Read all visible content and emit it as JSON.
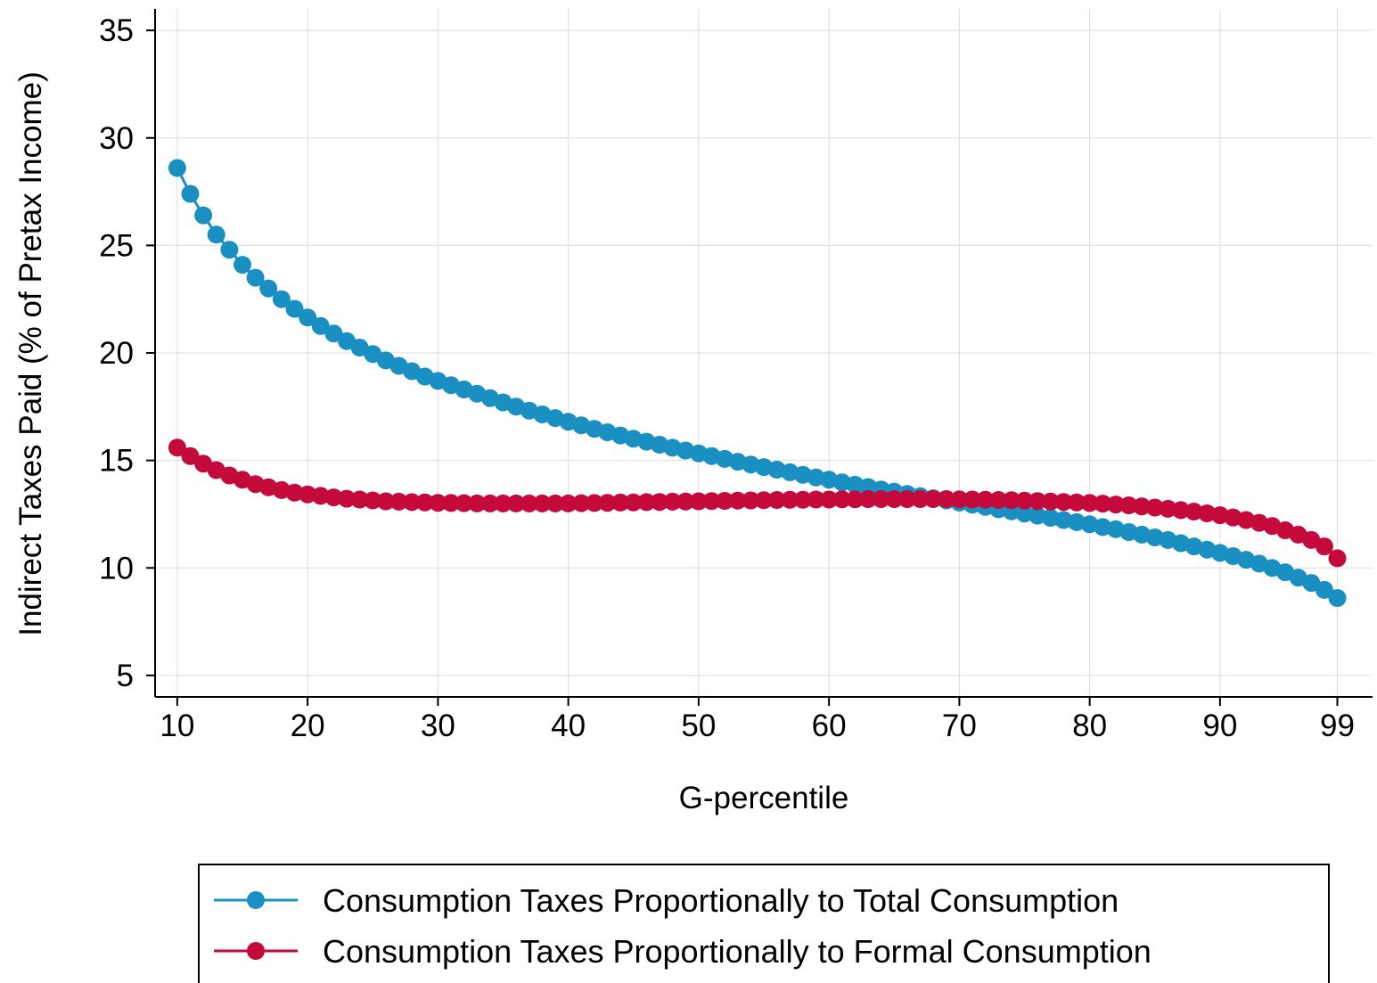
{
  "chart_data": {
    "type": "line",
    "title": "",
    "xlabel": "G-percentile",
    "ylabel": "Indirect Taxes Paid (% of Pretax Income)",
    "xlim": [
      8.3,
      101.7
    ],
    "ylim": [
      4.0,
      36.0
    ],
    "x_ticks": [
      10,
      20,
      30,
      40,
      50,
      60,
      70,
      80,
      90,
      99
    ],
    "y_ticks": [
      5,
      10,
      15,
      20,
      25,
      30,
      35
    ],
    "grid": true,
    "legend_position": "bottom",
    "x": [
      10,
      11,
      12,
      13,
      14,
      15,
      16,
      17,
      18,
      19,
      20,
      21,
      22,
      23,
      24,
      25,
      26,
      27,
      28,
      29,
      30,
      31,
      32,
      33,
      34,
      35,
      36,
      37,
      38,
      39,
      40,
      41,
      42,
      43,
      44,
      45,
      46,
      47,
      48,
      49,
      50,
      51,
      52,
      53,
      54,
      55,
      56,
      57,
      58,
      59,
      60,
      61,
      62,
      63,
      64,
      65,
      66,
      67,
      68,
      69,
      70,
      71,
      72,
      73,
      74,
      75,
      76,
      77,
      78,
      79,
      80,
      81,
      82,
      83,
      84,
      85,
      86,
      87,
      88,
      89,
      90,
      91,
      92,
      93,
      94,
      95,
      96,
      97,
      98,
      99
    ],
    "series": [
      {
        "name": "Consumption Taxes Proportionally to Total Consumption",
        "color": "#1a8fc1",
        "values": [
          28.6,
          27.4,
          26.4,
          25.5,
          24.8,
          24.1,
          23.5,
          23.0,
          22.5,
          22.05,
          21.65,
          21.25,
          20.9,
          20.55,
          20.25,
          19.95,
          19.65,
          19.4,
          19.15,
          18.9,
          18.7,
          18.5,
          18.3,
          18.1,
          17.9,
          17.7,
          17.5,
          17.32,
          17.14,
          16.97,
          16.8,
          16.63,
          16.47,
          16.31,
          16.16,
          16.01,
          15.87,
          15.73,
          15.59,
          15.46,
          15.33,
          15.2,
          15.07,
          14.94,
          14.81,
          14.69,
          14.57,
          14.45,
          14.33,
          14.21,
          14.1,
          13.98,
          13.87,
          13.76,
          13.65,
          13.55,
          13.44,
          13.34,
          13.24,
          13.14,
          13.04,
          12.94,
          12.84,
          12.73,
          12.63,
          12.53,
          12.43,
          12.33,
          12.23,
          12.13,
          12.03,
          11.9,
          11.8,
          11.67,
          11.55,
          11.42,
          11.3,
          11.15,
          11.0,
          10.85,
          10.7,
          10.55,
          10.38,
          10.2,
          10.0,
          9.8,
          9.55,
          9.3,
          8.98,
          8.6
        ]
      },
      {
        "name": "Consumption Taxes Proportionally to Formal Consumption",
        "color": "#c40a3c",
        "values": [
          15.6,
          15.2,
          14.85,
          14.55,
          14.3,
          14.1,
          13.9,
          13.75,
          13.62,
          13.5,
          13.42,
          13.35,
          13.28,
          13.22,
          13.18,
          13.14,
          13.1,
          13.08,
          13.06,
          13.05,
          13.03,
          13.02,
          13.01,
          13.0,
          13.0,
          13.0,
          13.0,
          13.0,
          13.0,
          13.0,
          13.0,
          13.01,
          13.02,
          13.03,
          13.04,
          13.05,
          13.06,
          13.07,
          13.08,
          13.09,
          13.1,
          13.11,
          13.12,
          13.13,
          13.14,
          13.15,
          13.16,
          13.17,
          13.17,
          13.18,
          13.18,
          13.19,
          13.19,
          13.2,
          13.2,
          13.2,
          13.2,
          13.2,
          13.2,
          13.2,
          13.19,
          13.18,
          13.17,
          13.16,
          13.15,
          13.13,
          13.11,
          13.09,
          13.07,
          13.05,
          13.02,
          12.99,
          12.95,
          12.91,
          12.86,
          12.81,
          12.75,
          12.69,
          12.62,
          12.54,
          12.45,
          12.35,
          12.23,
          12.1,
          11.95,
          11.75,
          11.55,
          11.3,
          11.0,
          10.45
        ]
      }
    ]
  }
}
